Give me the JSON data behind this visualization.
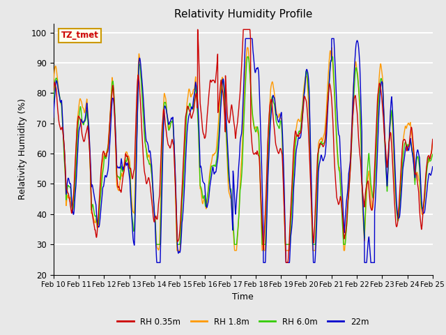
{
  "title": "Relativity Humidity Profile",
  "xlabel": "Time",
  "ylabel": "Relativity Humidity (%)",
  "ylim": [
    20,
    103
  ],
  "yticks": [
    20,
    30,
    40,
    50,
    60,
    70,
    80,
    90,
    100
  ],
  "colors": {
    "rh035": "#cc0000",
    "rh18": "#ff9900",
    "rh60": "#33cc00",
    "rh22m": "#0000cc"
  },
  "legend_labels": [
    "RH 0.35m",
    "RH 1.8m",
    "RH 6.0m",
    "22m"
  ],
  "annotation_text": "TZ_tmet",
  "annotation_color": "#cc0000",
  "annotation_box_color": "#ffffee",
  "annotation_edge_color": "#cc9900",
  "plot_bg_color": "#e8e8e8",
  "x_tick_labels": [
    "Feb 10",
    "Feb 11",
    "Feb 12",
    "Feb 13",
    "Feb 14",
    "Feb 15",
    "Feb 16",
    "Feb 17",
    "Feb 18",
    "Feb 19",
    "Feb 20",
    "Feb 21",
    "Feb 22",
    "Feb 23",
    "Feb 24",
    "Feb 25"
  ],
  "grid_color": "#ffffff",
  "line_width": 1.0
}
